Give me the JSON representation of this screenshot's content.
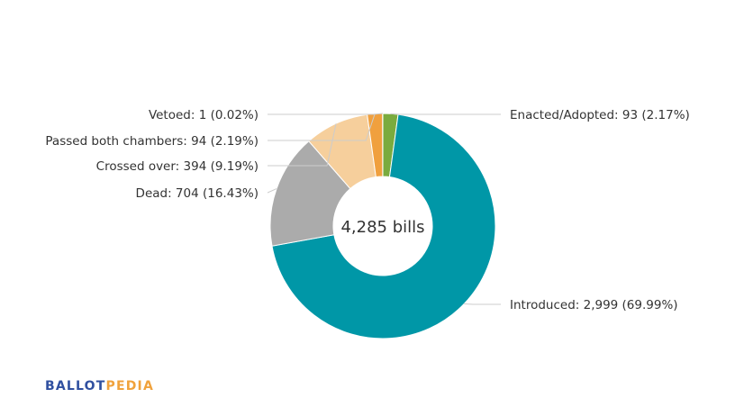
{
  "chart_data": {
    "type": "pie",
    "variant": "donut",
    "center_label": "4,285 bills",
    "slices": [
      {
        "label": "Enacted/Adopted",
        "value": 93,
        "percent": 2.17,
        "text": "Enacted/Adopted: 93 (2.17%)",
        "color": "#7aab3e",
        "side": "right"
      },
      {
        "label": "Introduced",
        "value": 2999,
        "percent": 69.99,
        "text": "Introduced: 2,999 (69.99%)",
        "color": "#0097a7",
        "side": "right"
      },
      {
        "label": "Dead",
        "value": 704,
        "percent": 16.43,
        "text": "Dead: 704 (16.43%)",
        "color": "#ababab",
        "side": "left"
      },
      {
        "label": "Crossed over",
        "value": 394,
        "percent": 9.19,
        "text": "Crossed over: 394 (9.19%)",
        "color": "#f6cf9c",
        "side": "left"
      },
      {
        "label": "Passed both chambers",
        "value": 94,
        "percent": 2.19,
        "text": "Passed both chambers: 94 (2.19%)",
        "color": "#f0a03e",
        "side": "left"
      },
      {
        "label": "Vetoed",
        "value": 1,
        "percent": 0.02,
        "text": "Vetoed: 1 (0.02%)",
        "color": "#6b3b1f",
        "side": "left"
      }
    ]
  },
  "logo": {
    "part1": "BALLOT",
    "part2": "PEDIA"
  }
}
